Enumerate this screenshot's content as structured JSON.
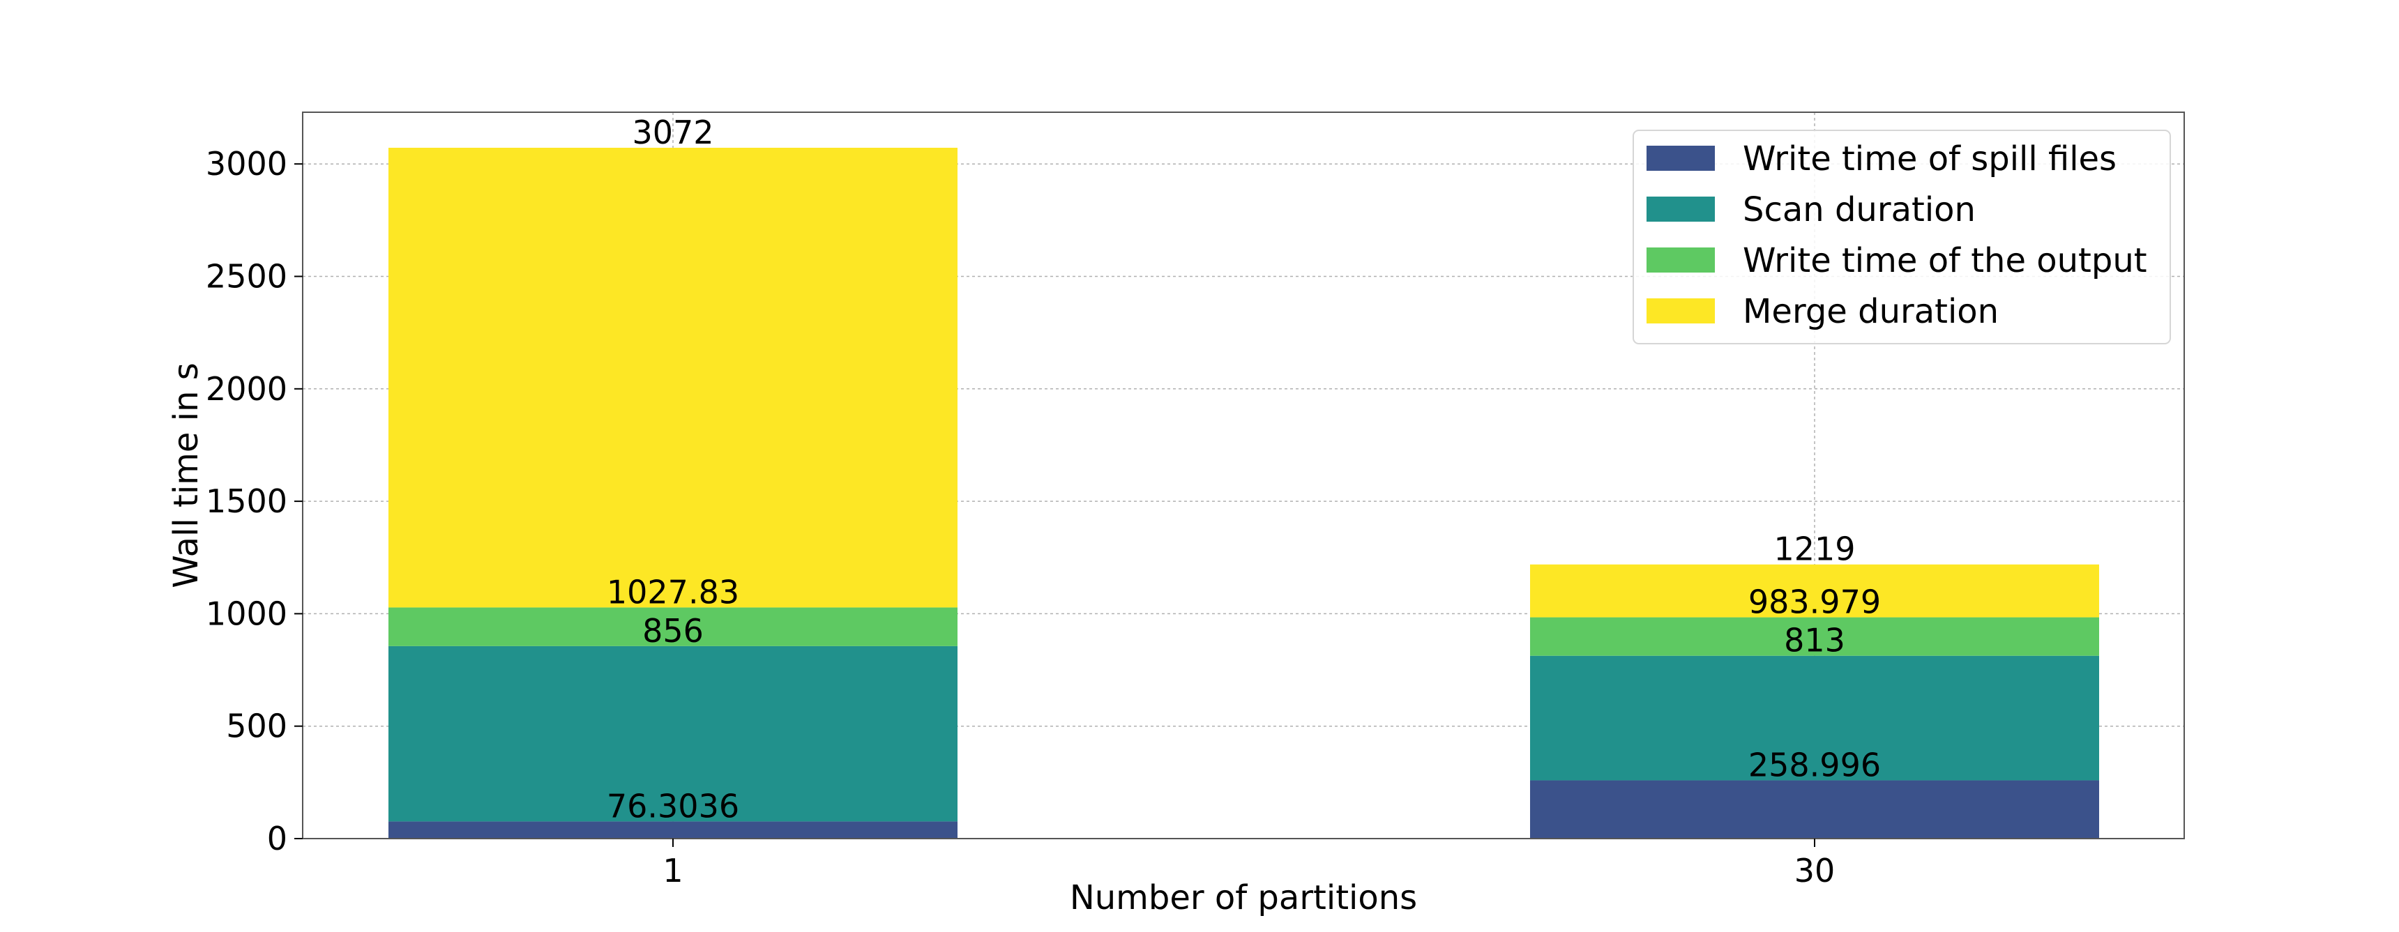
{
  "chart_data": {
    "type": "bar",
    "stacked": true,
    "xlabel": "Number of partitions",
    "ylabel": "Wall time in s",
    "categories": [
      "1",
      "30"
    ],
    "ylim": [
      0,
      3230
    ],
    "yticks": [
      0,
      500,
      1000,
      1500,
      2000,
      2500,
      3000
    ],
    "grid": true,
    "legend_position": "top-right",
    "series": [
      {
        "name": "Write time of spill files",
        "color": "#3b528b",
        "values": [
          76.3036,
          258.996
        ]
      },
      {
        "name": "Scan duration",
        "color": "#21918c",
        "values": [
          779.6964,
          554.004
        ]
      },
      {
        "name": "Write time of the output",
        "color": "#5ec962",
        "values": [
          171.83,
          170.979
        ]
      },
      {
        "name": "Merge duration",
        "color": "#fde725",
        "values": [
          2044.17,
          235.021
        ]
      }
    ],
    "data_labels": [
      [
        "76.3036",
        "258.996"
      ],
      [
        "856",
        "813"
      ],
      [
        "1027.83",
        "983.979"
      ],
      [
        "3072",
        "1219"
      ]
    ],
    "label_positions": [
      [
        76.3036,
        258.996
      ],
      [
        856,
        813
      ],
      [
        1027.83,
        983.979
      ],
      [
        3072,
        1219
      ]
    ]
  }
}
